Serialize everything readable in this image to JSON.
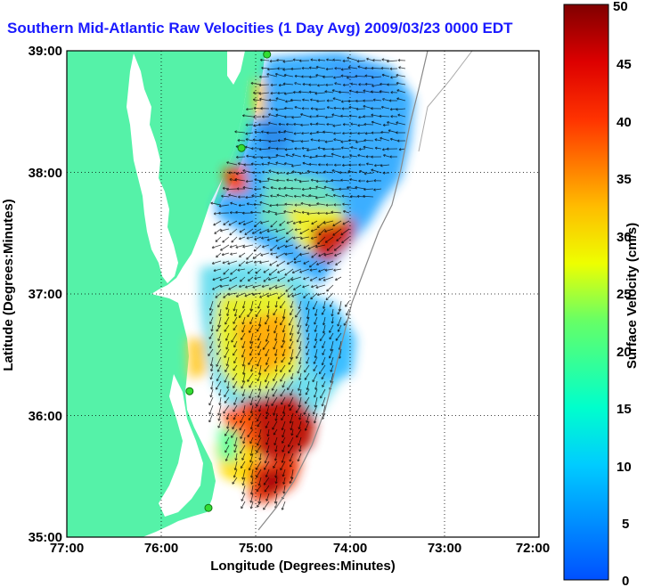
{
  "title": "Southern Mid-Atlantic Raw Velocities (1 Day Avg) 2009/03/23 0000 EDT",
  "map": {
    "xlabel": "Longitude (Degrees:Minutes)",
    "ylabel": "Latitude (Degrees:Minutes)",
    "x_ticks": [
      "77:00",
      "76:00",
      "75:00",
      "74:00",
      "73:00",
      "72:00"
    ],
    "y_ticks": [
      "39:00",
      "38:00",
      "37:00",
      "36:00",
      "35:00"
    ],
    "lon_range": [
      -77,
      -72
    ],
    "lat_range": [
      35,
      39
    ],
    "grid": true,
    "land_color": "#55f2a8",
    "water_color": "#ffffff"
  },
  "colorbar": {
    "label": "Surface Velocity (cm/s)",
    "ticks": [
      "50",
      "45",
      "40",
      "35",
      "30",
      "25",
      "20",
      "15",
      "10",
      "5",
      "0"
    ],
    "range": [
      0,
      50
    ],
    "units": "cm/s"
  },
  "stations": [
    {
      "lon": -74.88,
      "lat": 38.97
    },
    {
      "lon": -75.15,
      "lat": 38.2
    },
    {
      "lon": -75.7,
      "lat": 36.2
    },
    {
      "lon": -75.5,
      "lat": 35.24
    }
  ]
}
